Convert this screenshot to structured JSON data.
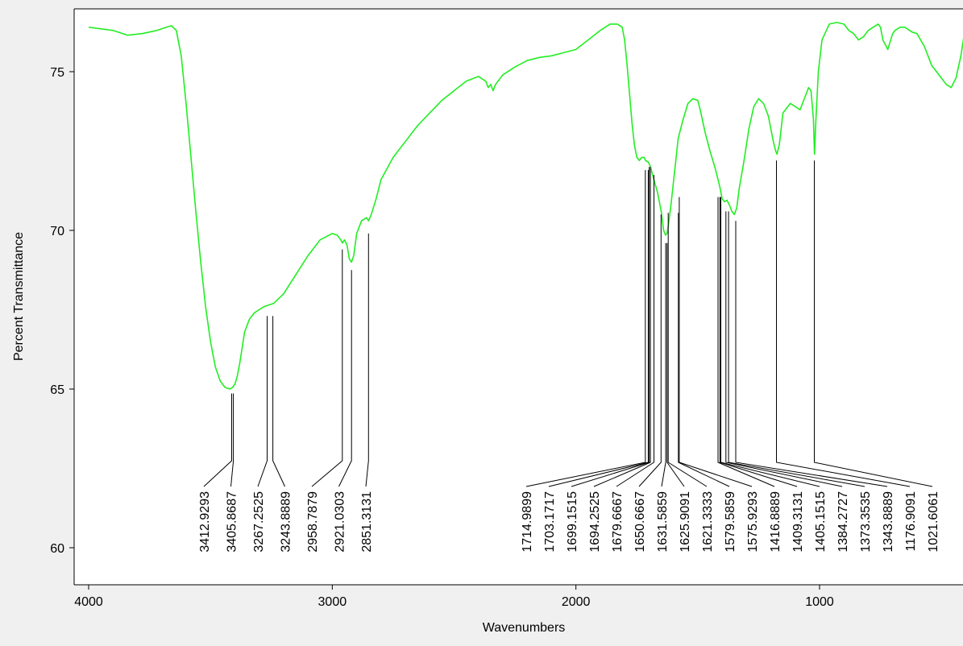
{
  "chart_data": {
    "type": "line",
    "title": "",
    "xlabel": "Wavenumbers",
    "ylabel": "Percent Transmittance",
    "xlim": [
      4000,
      400
    ],
    "ylim": [
      59,
      76.9
    ],
    "x_reversed": true,
    "grid": false,
    "legend": "none",
    "xticks": [
      4000,
      3000,
      2000,
      1000
    ],
    "yticks": [
      60,
      65,
      70,
      75
    ],
    "xtick_labels": [
      "4000",
      "3000",
      "2000",
      "1000"
    ],
    "ytick_labels": [
      "60",
      "65",
      "70",
      "75"
    ],
    "colors": {
      "spectrum": "#22ee22",
      "background": "#ffffff",
      "frame": "#000000"
    },
    "series": [
      {
        "x": [
          4000,
          3900,
          3840,
          3780,
          3720,
          3680,
          3660,
          3640,
          3620,
          3600,
          3580,
          3560,
          3540,
          3520,
          3500,
          3480,
          3460,
          3440,
          3420,
          3410,
          3400,
          3390,
          3380,
          3370,
          3360,
          3340,
          3320,
          3300,
          3280,
          3260,
          3240,
          3200,
          3150,
          3100,
          3050,
          3000,
          2980,
          2965,
          2958,
          2950,
          2940,
          2930,
          2921,
          2912,
          2900,
          2880,
          2860,
          2851,
          2840,
          2820,
          2800,
          2750,
          2700,
          2650,
          2600,
          2550,
          2500,
          2450,
          2400,
          2370,
          2360,
          2350,
          2340,
          2330,
          2300,
          2250,
          2200,
          2150,
          2100,
          2050,
          2000,
          1950,
          1900,
          1860,
          1830,
          1810,
          1800,
          1790,
          1780,
          1770,
          1760,
          1750,
          1740,
          1730,
          1720,
          1714,
          1703,
          1694,
          1680,
          1665,
          1650,
          1640,
          1632,
          1626,
          1620,
          1610,
          1600,
          1590,
          1580,
          1560,
          1540,
          1520,
          1500,
          1490,
          1470,
          1450,
          1430,
          1410,
          1400,
          1390,
          1380,
          1370,
          1360,
          1350,
          1340,
          1330,
          1310,
          1290,
          1270,
          1250,
          1230,
          1210,
          1190,
          1180,
          1175,
          1165,
          1150,
          1120,
          1100,
          1080,
          1060,
          1045,
          1035,
          1025,
          1021,
          1015,
          1005,
          990,
          960,
          930,
          900,
          880,
          860,
          840,
          820,
          800,
          780,
          760,
          750,
          740,
          720,
          700,
          690,
          670,
          650,
          620,
          600,
          570,
          540,
          500,
          480,
          460,
          440,
          420,
          400
        ],
        "y": [
          76.4,
          76.3,
          76.15,
          76.2,
          76.3,
          76.4,
          76.45,
          76.3,
          75.5,
          74,
          72.3,
          70.6,
          69.0,
          67.6,
          66.5,
          65.7,
          65.25,
          65.05,
          65.0,
          65.05,
          65.15,
          65.4,
          65.8,
          66.3,
          66.8,
          67.2,
          67.4,
          67.5,
          67.6,
          67.65,
          67.7,
          68.0,
          68.6,
          69.2,
          69.7,
          69.9,
          69.85,
          69.7,
          69.6,
          69.7,
          69.55,
          69.1,
          69.0,
          69.2,
          69.9,
          70.3,
          70.4,
          70.3,
          70.5,
          71.0,
          71.6,
          72.3,
          72.8,
          73.3,
          73.7,
          74.1,
          74.4,
          74.7,
          74.85,
          74.7,
          74.5,
          74.6,
          74.4,
          74.6,
          74.9,
          75.15,
          75.35,
          75.45,
          75.5,
          75.6,
          75.7,
          76.0,
          76.3,
          76.5,
          76.5,
          76.4,
          76.0,
          75.2,
          74.3,
          73.4,
          72.7,
          72.3,
          72.2,
          72.3,
          72.3,
          72.2,
          72.15,
          72.0,
          71.6,
          71.2,
          70.6,
          70.0,
          69.85,
          69.9,
          70.2,
          70.8,
          71.5,
          72.2,
          72.9,
          73.5,
          74.0,
          74.15,
          74.1,
          73.8,
          73.1,
          72.5,
          72.0,
          71.4,
          71.0,
          70.9,
          70.95,
          70.8,
          70.6,
          70.5,
          70.7,
          71.3,
          72.2,
          73.2,
          73.9,
          74.15,
          74.0,
          73.6,
          72.8,
          72.5,
          72.4,
          72.7,
          73.7,
          74.0,
          73.9,
          73.8,
          74.2,
          74.5,
          74.4,
          73.5,
          72.4,
          73.5,
          75.0,
          76.0,
          76.5,
          76.55,
          76.5,
          76.3,
          76.2,
          76.0,
          76.1,
          76.3,
          76.4,
          76.5,
          76.4,
          76.0,
          75.7,
          76.2,
          76.3,
          76.4,
          76.4,
          76.25,
          76.2,
          75.8,
          75.2,
          74.8,
          74.6,
          74.5,
          74.8,
          75.5,
          76.5
        ]
      }
    ],
    "peaks": [
      {
        "label": "3412.9293",
        "wavenumber": 3412.9293,
        "y": 64.86,
        "group": 1
      },
      {
        "label": "3405.8687",
        "wavenumber": 3405.8687,
        "y": 64.86,
        "group": 1
      },
      {
        "label": "3267.2525",
        "wavenumber": 3267.2525,
        "y": 67.3,
        "group": 1
      },
      {
        "label": "3243.8889",
        "wavenumber": 3243.8889,
        "y": 67.3,
        "group": 1
      },
      {
        "label": "2958.7879",
        "wavenumber": 2958.7879,
        "y": 69.4,
        "group": 1
      },
      {
        "label": "2921.0303",
        "wavenumber": 2921.0303,
        "y": 68.75,
        "group": 1
      },
      {
        "label": "2851.3131",
        "wavenumber": 2851.3131,
        "y": 69.9,
        "group": 1
      },
      {
        "label": "1714.9899",
        "wavenumber": 1714.9899,
        "y": 71.9,
        "group": 2
      },
      {
        "label": "1703.1717",
        "wavenumber": 1703.1717,
        "y": 71.9,
        "group": 2
      },
      {
        "label": "1699.1515",
        "wavenumber": 1699.1515,
        "y": 72.0,
        "group": 2
      },
      {
        "label": "1694.2525",
        "wavenumber": 1694.2525,
        "y": 72.0,
        "group": 2
      },
      {
        "label": "1679.6667",
        "wavenumber": 1679.6667,
        "y": 71.75,
        "group": 2
      },
      {
        "label": "1650.6667",
        "wavenumber": 1650.6667,
        "y": 70.5,
        "group": 2
      },
      {
        "label": "1631.5859",
        "wavenumber": 1631.5859,
        "y": 69.6,
        "group": 2
      },
      {
        "label": "1625.9091",
        "wavenumber": 1625.9091,
        "y": 69.6,
        "group": 2
      },
      {
        "label": "1621.3333",
        "wavenumber": 1621.3333,
        "y": 70.55,
        "group": 2
      },
      {
        "label": "1579.5859",
        "wavenumber": 1579.5859,
        "y": 70.55,
        "group": 2
      },
      {
        "label": "1575.9293",
        "wavenumber": 1575.9293,
        "y": 71.05,
        "group": 2
      },
      {
        "label": "1416.8889",
        "wavenumber": 1416.8889,
        "y": 71.05,
        "group": 2
      },
      {
        "label": "1409.3131",
        "wavenumber": 1409.3131,
        "y": 71.05,
        "group": 2
      },
      {
        "label": "1405.1515",
        "wavenumber": 1405.1515,
        "y": 71.05,
        "group": 2
      },
      {
        "label": "1384.2727",
        "wavenumber": 1384.2727,
        "y": 70.6,
        "group": 2
      },
      {
        "label": "1373.3535",
        "wavenumber": 1373.3535,
        "y": 70.6,
        "group": 2
      },
      {
        "label": "1343.8889",
        "wavenumber": 1343.8889,
        "y": 70.3,
        "group": 2
      },
      {
        "label": "1176.9091",
        "wavenumber": 1176.9091,
        "y": 72.2,
        "group": 2
      },
      {
        "label": "1021.6061",
        "wavenumber": 1021.6061,
        "y": 72.2,
        "group": 2
      }
    ]
  }
}
